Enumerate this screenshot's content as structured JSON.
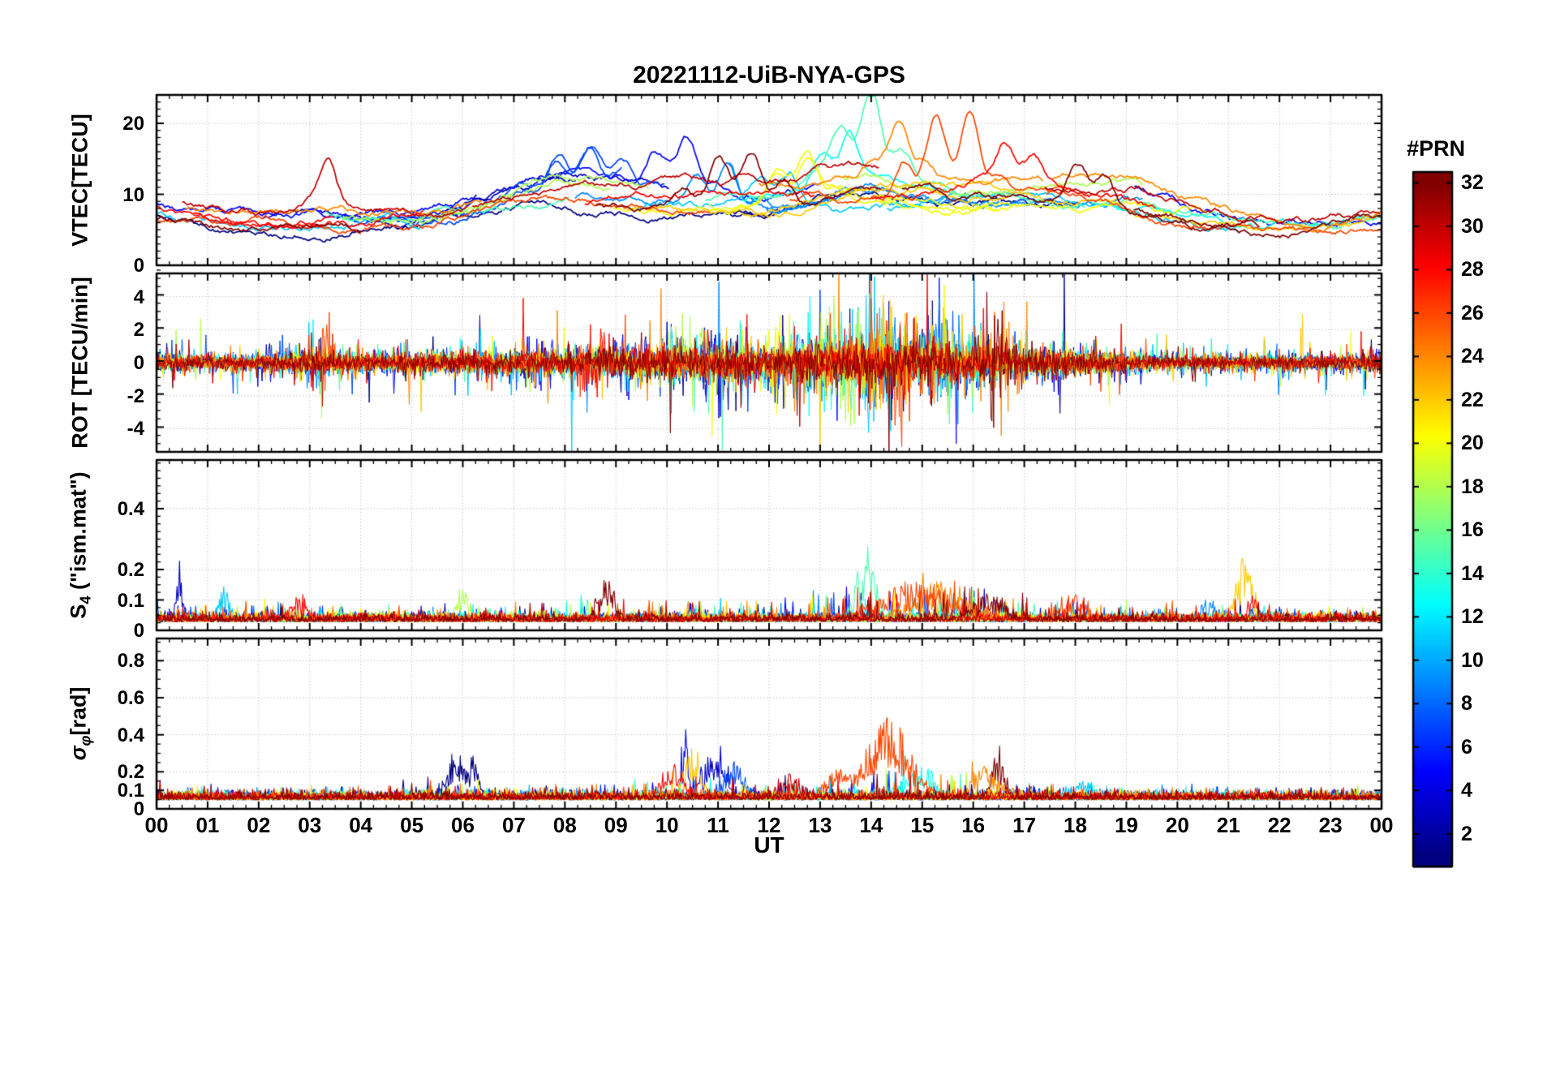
{
  "chart_data": {
    "type": "line",
    "title": "20221112-UiB-NYA-GPS",
    "xlabel": "UT",
    "x_range": [
      0,
      24
    ],
    "x_tick_values": [
      0,
      1,
      2,
      3,
      4,
      5,
      6,
      7,
      8,
      9,
      10,
      11,
      12,
      13,
      14,
      15,
      16,
      17,
      18,
      19,
      20,
      21,
      22,
      23,
      24
    ],
    "x_tick_labels": [
      "00",
      "01",
      "02",
      "03",
      "04",
      "05",
      "06",
      "07",
      "08",
      "09",
      "10",
      "11",
      "12",
      "13",
      "14",
      "15",
      "16",
      "17",
      "18",
      "19",
      "20",
      "21",
      "22",
      "23",
      "00"
    ],
    "grid": true,
    "legend_position": "right-colorbar",
    "colorbar": {
      "label": "#PRN",
      "colormap": "jet",
      "range": [
        0.5,
        32.5
      ],
      "tick_values": [
        2,
        4,
        6,
        8,
        10,
        12,
        14,
        16,
        18,
        20,
        22,
        24,
        26,
        28,
        30,
        32
      ]
    },
    "series_prns": [
      1,
      3,
      5,
      7,
      9,
      11,
      13,
      15,
      18,
      20,
      22,
      24,
      26,
      28,
      30,
      32
    ],
    "seed": 20221112,
    "panels": [
      {
        "id": "vtec",
        "ylabel_parts": [
          {
            "t": "VTEC[TECU]"
          }
        ],
        "ylim": [
          0,
          24
        ],
        "ytick_values": [
          0,
          10,
          20
        ],
        "ytick_labels": [
          "0",
          "10",
          "20"
        ],
        "minor_y": 1,
        "baseline_hourly": [
          7.5,
          6.5,
          6.0,
          6.5,
          6.0,
          6.0,
          7.0,
          8.5,
          9.5,
          9.5,
          9.0,
          8.5,
          8.5,
          9.5,
          10.5,
          10.5,
          10.0,
          10.0,
          9.5,
          9.0,
          7.5,
          6.0,
          5.0,
          5.0,
          6.0
        ],
        "spread_hourly": [
          2.0,
          1.5,
          1.5,
          2.0,
          1.5,
          1.5,
          2.0,
          2.5,
          3.0,
          3.0,
          3.0,
          3.0,
          3.0,
          3.5,
          3.5,
          3.5,
          3.0,
          2.5,
          2.5,
          2.5,
          2.0,
          1.5,
          1.5,
          1.5,
          1.5
        ],
        "events": [
          {
            "prn": 15,
            "t": 13.9,
            "w": 0.5,
            "amp": 11
          },
          {
            "prn": 26,
            "t": 15.2,
            "w": 0.55,
            "amp": 11
          },
          {
            "prn": 26,
            "t": 16.0,
            "w": 0.35,
            "amp": 7
          },
          {
            "prn": 24,
            "t": 14.6,
            "w": 0.4,
            "amp": 7
          },
          {
            "prn": 13,
            "t": 13.4,
            "w": 0.4,
            "amp": 7
          },
          {
            "prn": 5,
            "t": 10.2,
            "w": 0.5,
            "amp": 7
          },
          {
            "prn": 9,
            "t": 11.0,
            "w": 0.5,
            "amp": 7
          },
          {
            "prn": 32,
            "t": 11.4,
            "w": 0.7,
            "amp": 8
          },
          {
            "prn": 30,
            "t": 3.3,
            "w": 0.25,
            "amp": 6
          },
          {
            "prn": 28,
            "t": 16.8,
            "w": 0.4,
            "amp": 6
          },
          {
            "prn": 32,
            "t": 18.3,
            "w": 0.4,
            "amp": 6
          },
          {
            "prn": 20,
            "t": 12.6,
            "w": 0.5,
            "amp": 6
          },
          {
            "prn": 11,
            "t": 12.2,
            "w": 0.4,
            "amp": 5
          },
          {
            "prn": 7,
            "t": 8.3,
            "w": 0.8,
            "amp": 5
          }
        ]
      },
      {
        "id": "rot",
        "ylabel_parts": [
          {
            "t": "ROT [TECU/min]"
          }
        ],
        "ylim": [
          -5.4,
          5.4
        ],
        "ytick_values": [
          -4,
          -2,
          0,
          2,
          4
        ],
        "ytick_labels": [
          "-4",
          "-2",
          "0",
          "2",
          "4"
        ],
        "minor_y": 0.5,
        "amp_hourly": [
          0.5,
          0.4,
          0.4,
          0.7,
          0.5,
          0.5,
          0.6,
          0.6,
          0.7,
          0.8,
          0.9,
          1.0,
          0.9,
          1.2,
          1.3,
          1.2,
          1.1,
          0.8,
          0.7,
          0.5,
          0.4,
          0.4,
          0.4,
          0.4,
          0.5
        ],
        "events": [
          {
            "prn": 26,
            "t": 3.35,
            "w": 0.1,
            "amp": 4.5
          },
          {
            "prn": 5,
            "t": 7.5,
            "w": 0.3,
            "amp": 2.0
          },
          {
            "prn": 28,
            "t": 8.6,
            "w": 0.3,
            "amp": 2.5
          },
          {
            "prn": 18,
            "t": 10.4,
            "w": 0.3,
            "amp": 3.0
          },
          {
            "prn": 1,
            "t": 11.2,
            "w": 0.3,
            "amp": 3.0
          },
          {
            "prn": 20,
            "t": 12.3,
            "w": 0.3,
            "amp": 3.0
          },
          {
            "prn": 13,
            "t": 13.0,
            "w": 0.5,
            "amp": 3.5
          },
          {
            "prn": 18,
            "t": 13.5,
            "w": 0.4,
            "amp": 4.0
          },
          {
            "prn": 11,
            "t": 14.0,
            "w": 0.5,
            "amp": 4.0
          },
          {
            "prn": 22,
            "t": 14.3,
            "w": 0.4,
            "amp": 4.0
          },
          {
            "prn": 26,
            "t": 14.6,
            "w": 0.5,
            "amp": 4.5
          },
          {
            "prn": 9,
            "t": 15.5,
            "w": 0.4,
            "amp": 3.5
          },
          {
            "prn": 32,
            "t": 16.4,
            "w": 0.3,
            "amp": 4.0
          },
          {
            "prn": 24,
            "t": 16.6,
            "w": 0.3,
            "amp": 3.5
          }
        ]
      },
      {
        "id": "s4",
        "ylabel_parts": [
          {
            "t": "S"
          },
          {
            "t": "4",
            "sub": true
          },
          {
            "t": " (\"ism.mat\")"
          }
        ],
        "ylim": [
          0,
          0.56
        ],
        "ytick_values": [
          0,
          0.1,
          0.2,
          0.4
        ],
        "ytick_labels": [
          "0",
          "0.1",
          "0.2",
          "0.4"
        ],
        "minor_y": 0.025,
        "base": 0.028,
        "amp_hourly": [
          0.05,
          0.04,
          0.04,
          0.04,
          0.03,
          0.03,
          0.04,
          0.04,
          0.05,
          0.05,
          0.05,
          0.05,
          0.05,
          0.08,
          0.09,
          0.09,
          0.08,
          0.05,
          0.05,
          0.04,
          0.04,
          0.06,
          0.04,
          0.03,
          0.03
        ],
        "events": [
          {
            "prn": 3,
            "t": 0.45,
            "w": 0.06,
            "amp": 0.17
          },
          {
            "prn": 11,
            "t": 1.3,
            "w": 0.1,
            "amp": 0.1
          },
          {
            "prn": 28,
            "t": 2.8,
            "w": 0.15,
            "amp": 0.08
          },
          {
            "prn": 18,
            "t": 6.0,
            "w": 0.1,
            "amp": 0.1
          },
          {
            "prn": 32,
            "t": 8.8,
            "w": 0.15,
            "amp": 0.15
          },
          {
            "prn": 15,
            "t": 13.9,
            "w": 0.2,
            "amp": 0.18
          },
          {
            "prn": 26,
            "t": 14.9,
            "w": 0.7,
            "amp": 0.12
          },
          {
            "prn": 24,
            "t": 15.3,
            "w": 0.5,
            "amp": 0.12
          },
          {
            "prn": 32,
            "t": 16.3,
            "w": 0.3,
            "amp": 0.09
          },
          {
            "prn": 26,
            "t": 18.0,
            "w": 0.2,
            "amp": 0.08
          },
          {
            "prn": 9,
            "t": 20.6,
            "w": 0.15,
            "amp": 0.07
          },
          {
            "prn": 22,
            "t": 21.3,
            "w": 0.15,
            "amp": 0.2
          },
          {
            "prn": 28,
            "t": 21.5,
            "w": 0.1,
            "amp": 0.08
          }
        ]
      },
      {
        "id": "sigma",
        "ylabel_parts": [
          {
            "t": "σ",
            "italic": true
          },
          {
            "t": "φ",
            "sub": true,
            "italic": true
          },
          {
            "t": "[rad]"
          }
        ],
        "ylim": [
          0,
          0.92
        ],
        "ytick_values": [
          0,
          0.1,
          0.2,
          0.4,
          0.6,
          0.8
        ],
        "ytick_labels": [
          "0",
          "0.1",
          "0.2",
          "0.4",
          "0.6",
          "0.8"
        ],
        "minor_y": 0.05,
        "base": 0.048,
        "amp_hourly": [
          0.03,
          0.03,
          0.03,
          0.04,
          0.04,
          0.08,
          0.06,
          0.03,
          0.05,
          0.06,
          0.1,
          0.1,
          0.06,
          0.08,
          0.15,
          0.1,
          0.1,
          0.05,
          0.06,
          0.03,
          0.03,
          0.03,
          0.03,
          0.03,
          0.03
        ],
        "events": [
          {
            "prn": 1,
            "t": 5.85,
            "w": 0.15,
            "amp": 0.25
          },
          {
            "prn": 1,
            "t": 6.2,
            "w": 0.1,
            "amp": 0.2
          },
          {
            "prn": 28,
            "t": 10.1,
            "w": 0.2,
            "amp": 0.18
          },
          {
            "prn": 5,
            "t": 10.35,
            "w": 0.06,
            "amp": 0.36
          },
          {
            "prn": 22,
            "t": 10.5,
            "w": 0.15,
            "amp": 0.25
          },
          {
            "prn": 3,
            "t": 10.9,
            "w": 0.25,
            "amp": 0.22
          },
          {
            "prn": 7,
            "t": 11.3,
            "w": 0.2,
            "amp": 0.2
          },
          {
            "prn": 30,
            "t": 12.4,
            "w": 0.2,
            "amp": 0.12
          },
          {
            "prn": 26,
            "t": 13.3,
            "w": 0.2,
            "amp": 0.15
          },
          {
            "prn": 26,
            "t": 14.35,
            "w": 0.4,
            "amp": 0.42
          },
          {
            "prn": 13,
            "t": 14.9,
            "w": 0.3,
            "amp": 0.18
          },
          {
            "prn": 24,
            "t": 16.2,
            "w": 0.3,
            "amp": 0.15
          },
          {
            "prn": 32,
            "t": 16.5,
            "w": 0.12,
            "amp": 0.25
          },
          {
            "prn": 11,
            "t": 18.2,
            "w": 0.15,
            "amp": 0.1
          }
        ]
      }
    ]
  }
}
